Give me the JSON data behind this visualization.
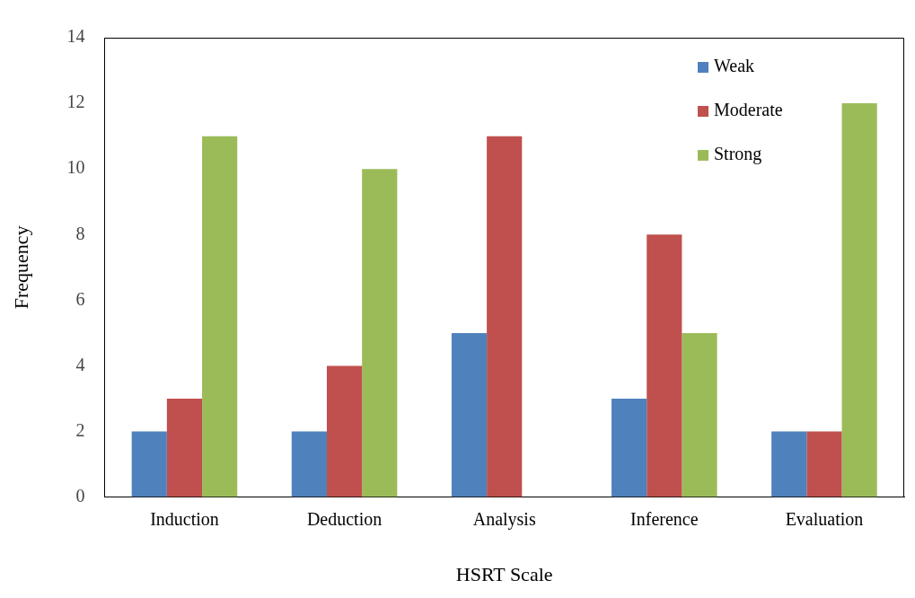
{
  "chart_data": {
    "type": "bar",
    "xlabel": "HSRT Scale",
    "ylabel": "Frequency",
    "categories": [
      "Induction",
      "Deduction",
      "Analysis",
      "Inference",
      "Evaluation"
    ],
    "series": [
      {
        "name": "Weak",
        "color": "#4f81bd",
        "values": [
          2,
          2,
          5,
          3,
          2
        ]
      },
      {
        "name": "Moderate",
        "color": "#c0504d",
        "values": [
          3,
          4,
          11,
          8,
          2
        ]
      },
      {
        "name": "Strong",
        "color": "#9bbb59",
        "values": [
          11,
          10,
          0,
          5,
          12
        ]
      }
    ],
    "ylim": [
      0,
      14
    ],
    "yticks": [
      0,
      2,
      4,
      6,
      8,
      10,
      12,
      14
    ],
    "grid": false,
    "legend": "top right"
  }
}
